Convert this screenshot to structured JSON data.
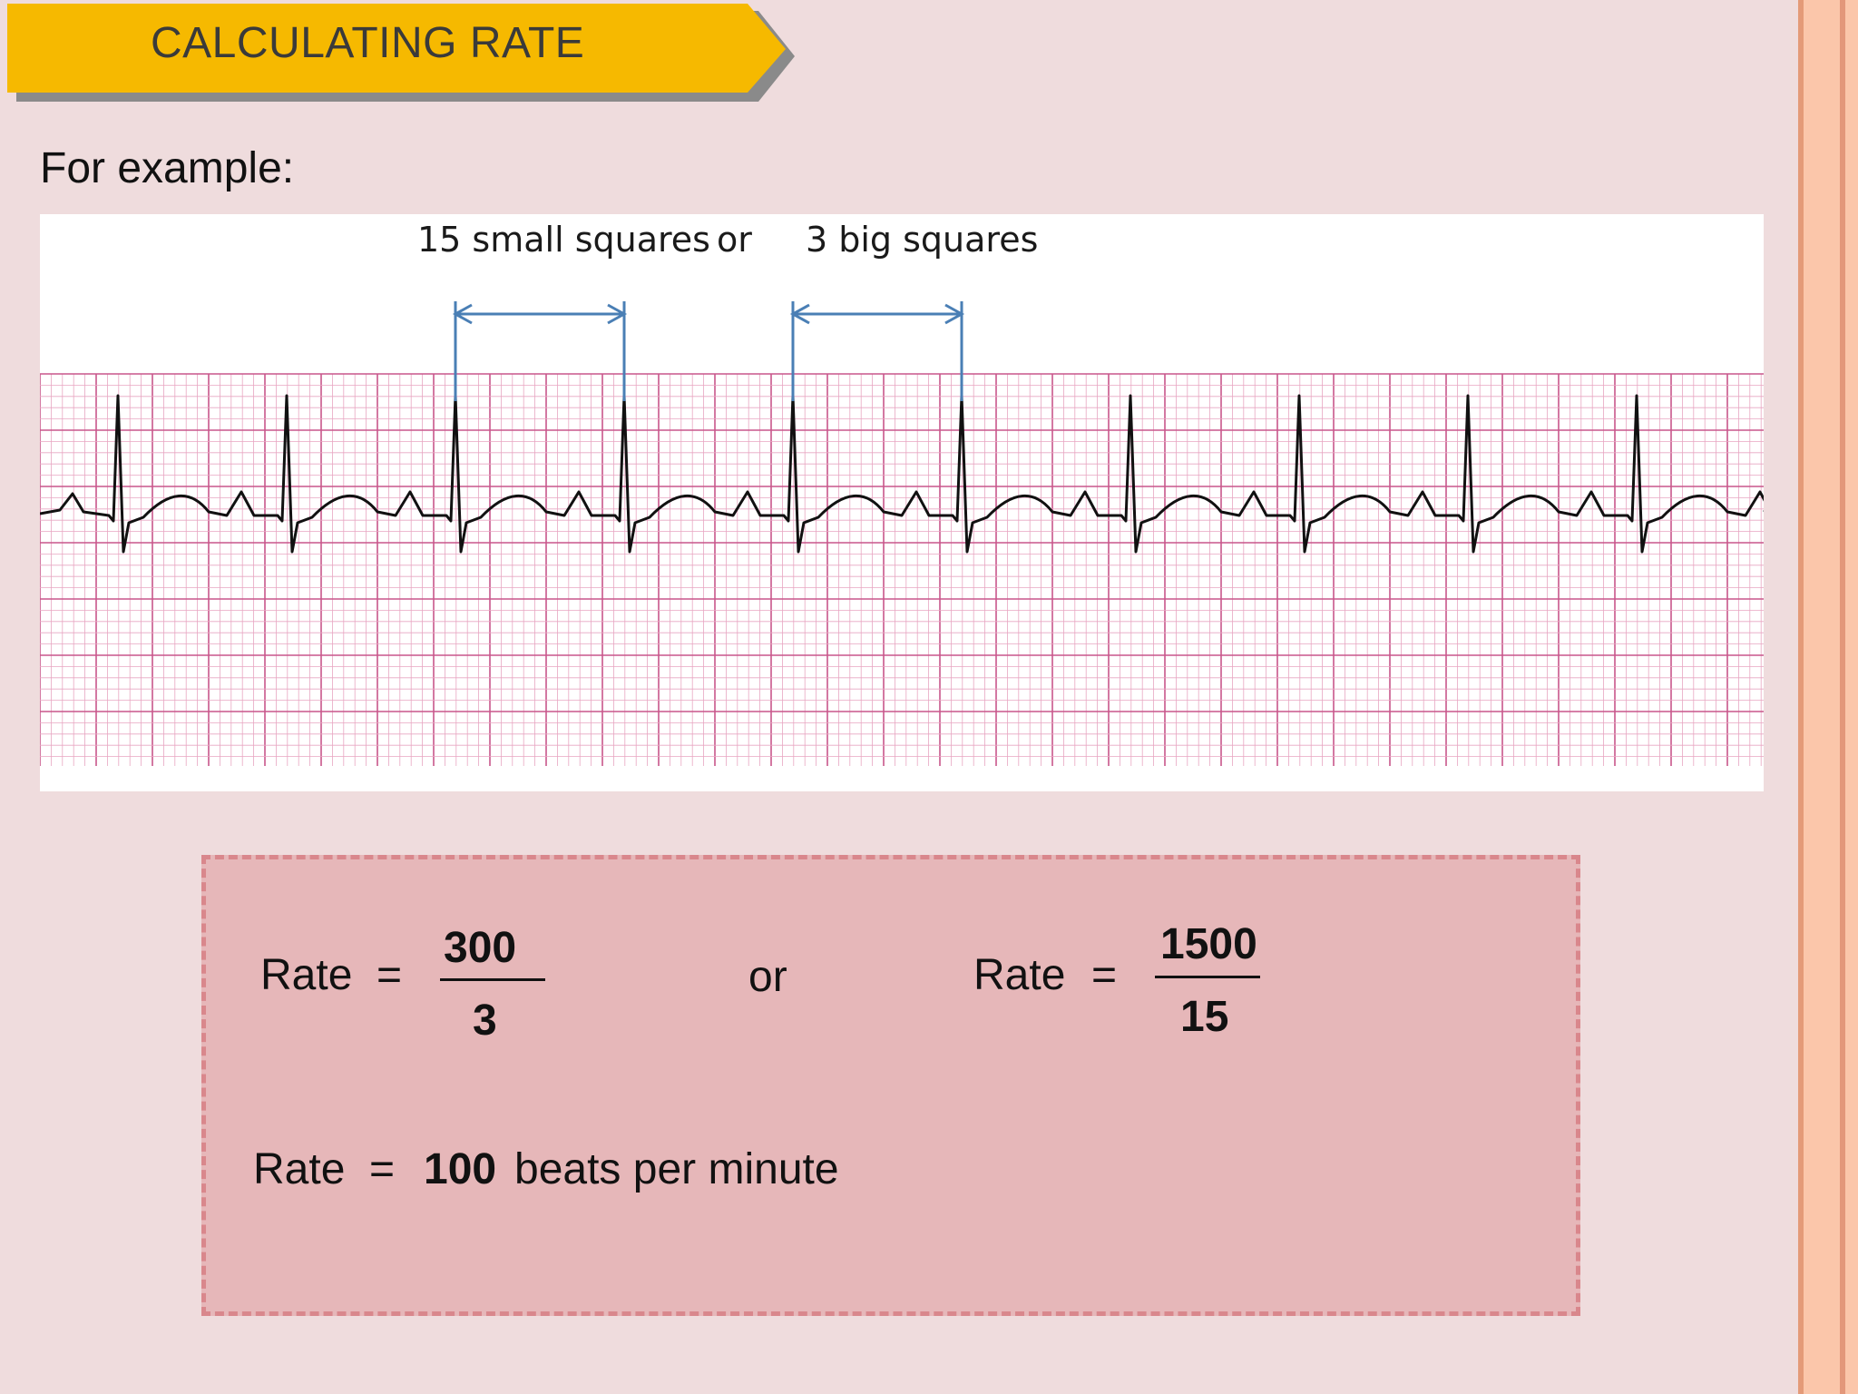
{
  "slide": {
    "title": "CALCULATING RATE",
    "intro": "For example:",
    "colors": {
      "background": "#efdcdd",
      "banner": "#f6b900",
      "banner_shadow": "#8a8a8a",
      "ecg_grid_minor": "#e8a6c2",
      "ecg_grid_major": "#c8578b",
      "ecg_trace": "#111111",
      "arrow": "#4a7fb5",
      "formula_box": "#e6b7b9",
      "formula_border": "#d9878c"
    }
  },
  "ecg": {
    "label_small": "15 small squares",
    "label_or": "or",
    "label_big": "3 big squares",
    "small_squares_between_beats": 15,
    "big_squares_between_beats": 3,
    "beat_count": 10
  },
  "formula": {
    "rate_label": "Rate",
    "equals": "=",
    "frac1_numerator": "300",
    "frac1_denominator": "3",
    "or": "or",
    "frac2_numerator": "1500",
    "frac2_denominator": "15",
    "result_value": "100",
    "result_unit": "beats per minute"
  }
}
